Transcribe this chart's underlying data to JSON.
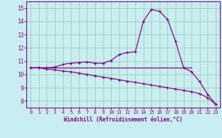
{
  "xlabel": "Windchill (Refroidissement éolien,°C)",
  "xlim": [
    -0.5,
    23.5
  ],
  "ylim": [
    7.5,
    15.5
  ],
  "yticks": [
    8,
    9,
    10,
    11,
    12,
    13,
    14,
    15
  ],
  "xticks": [
    0,
    1,
    2,
    3,
    4,
    5,
    6,
    7,
    8,
    9,
    10,
    11,
    12,
    13,
    14,
    15,
    16,
    17,
    18,
    19,
    20,
    21,
    22,
    23
  ],
  "bg_color": "#c8eef0",
  "line_color": "#880088",
  "grid_color": "#99ccbb",
  "flat_line_x": [
    0,
    20
  ],
  "flat_line_y": [
    10.5,
    10.5
  ],
  "line2_x": [
    0,
    1,
    2,
    3,
    4,
    5,
    6,
    7,
    8,
    9,
    10,
    11,
    12,
    13,
    14,
    15,
    16,
    17,
    18,
    19,
    20,
    21,
    22,
    23
  ],
  "line2_y": [
    10.5,
    10.5,
    10.5,
    10.55,
    10.75,
    10.85,
    10.9,
    10.95,
    10.85,
    10.85,
    11.05,
    11.5,
    11.65,
    11.7,
    14.0,
    14.9,
    14.75,
    14.15,
    12.5,
    10.5,
    10.2,
    9.45,
    8.5,
    7.75
  ],
  "line3_x": [
    0,
    1,
    2,
    3,
    4,
    5,
    6,
    7,
    8,
    9,
    10,
    11,
    12,
    13,
    14,
    15,
    16,
    17,
    18,
    19,
    20,
    21,
    22,
    23
  ],
  "line3_y": [
    10.5,
    10.5,
    10.4,
    10.35,
    10.25,
    10.2,
    10.1,
    10.0,
    9.9,
    9.8,
    9.7,
    9.6,
    9.5,
    9.4,
    9.3,
    9.2,
    9.1,
    9.0,
    8.9,
    8.8,
    8.7,
    8.55,
    8.25,
    7.75
  ]
}
